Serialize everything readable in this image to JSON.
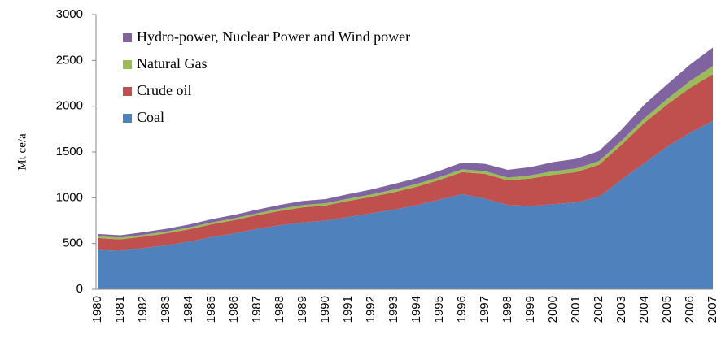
{
  "chart_data": {
    "type": "stacked_area",
    "y_label": "Mt ce/a",
    "categories": [
      "1980",
      "1981",
      "1982",
      "1983",
      "1984",
      "1985",
      "1986",
      "1987",
      "1988",
      "1989",
      "1990",
      "1991",
      "1992",
      "1993",
      "1994",
      "1995",
      "1996",
      "1997",
      "1998",
      "1999",
      "2000",
      "2001",
      "2002",
      "2003",
      "2004",
      "2005",
      "2006",
      "2007"
    ],
    "series": [
      {
        "name": "Coal",
        "color": "#4f81bd",
        "values": [
          430,
          420,
          450,
          480,
          520,
          570,
          610,
          660,
          700,
          730,
          750,
          790,
          830,
          870,
          920,
          980,
          1040,
          990,
          920,
          910,
          930,
          950,
          1010,
          1200,
          1380,
          1560,
          1710,
          1840
        ]
      },
      {
        "name": "Crude oil",
        "color": "#c0504d",
        "values": [
          130,
          125,
          125,
          130,
          135,
          140,
          145,
          150,
          155,
          165,
          165,
          175,
          180,
          190,
          200,
          215,
          240,
          270,
          270,
          300,
          320,
          330,
          350,
          380,
          440,
          460,
          490,
          510
        ]
      },
      {
        "name": "Natural Gas",
        "color": "#9bbb59",
        "values": [
          20,
          20,
          20,
          20,
          20,
          20,
          20,
          20,
          25,
          25,
          25,
          25,
          25,
          30,
          30,
          30,
          30,
          30,
          30,
          35,
          40,
          40,
          40,
          45,
          50,
          60,
          75,
          90
        ]
      },
      {
        "name": "Hydro-power, Nuclear Power and Wind power",
        "color": "#8064a2",
        "values": [
          25,
          25,
          28,
          30,
          32,
          35,
          38,
          40,
          42,
          45,
          45,
          50,
          55,
          60,
          65,
          70,
          75,
          80,
          85,
          90,
          100,
          105,
          110,
          120,
          150,
          160,
          180,
          200
        ]
      }
    ],
    "ylim": [
      0,
      3000
    ],
    "yticks": [
      0,
      500,
      1000,
      1500,
      2000,
      2500,
      3000
    ],
    "grid": false,
    "legend": "top-left"
  }
}
